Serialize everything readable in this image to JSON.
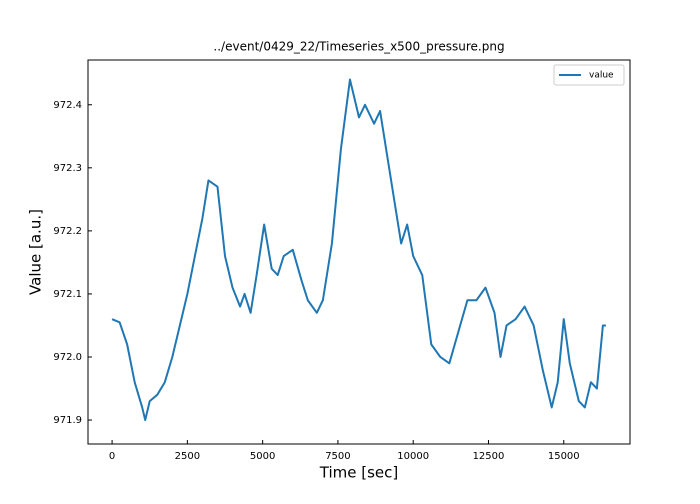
{
  "chart_data": {
    "type": "line",
    "title": "../event/0429_22/Timeseries_x500_pressure.png",
    "xlabel": "Time [sec]",
    "ylabel": "Value [a.u.]",
    "x": [
      0,
      250,
      500,
      750,
      1000,
      1100,
      1250,
      1500,
      1750,
      2000,
      2250,
      2500,
      2750,
      3000,
      3200,
      3500,
      3750,
      4000,
      4250,
      4400,
      4600,
      4800,
      5050,
      5300,
      5500,
      5700,
      6000,
      6300,
      6500,
      6800,
      7000,
      7300,
      7600,
      7900,
      8200,
      8400,
      8700,
      8900,
      9100,
      9300,
      9600,
      9800,
      10000,
      10300,
      10600,
      10900,
      11200,
      11500,
      11800,
      12100,
      12400,
      12700,
      12900,
      13100,
      13400,
      13700,
      14000,
      14300,
      14600,
      14800,
      15000,
      15200,
      15500,
      15700,
      15900,
      16100,
      16300,
      16400
    ],
    "series": [
      {
        "name": "value",
        "color": "#1f77b4",
        "values": [
          972.06,
          972.055,
          972.02,
          971.96,
          971.92,
          971.9,
          971.93,
          971.94,
          971.96,
          972.0,
          972.05,
          972.1,
          972.16,
          972.22,
          972.28,
          972.27,
          972.16,
          972.11,
          972.08,
          972.1,
          972.07,
          972.13,
          972.21,
          972.14,
          972.13,
          972.16,
          972.17,
          972.12,
          972.09,
          972.07,
          972.09,
          972.18,
          972.33,
          972.44,
          972.38,
          972.4,
          972.37,
          972.39,
          972.33,
          972.27,
          972.18,
          972.21,
          972.16,
          972.13,
          972.02,
          972.0,
          971.99,
          972.04,
          972.09,
          972.09,
          972.11,
          972.07,
          972.0,
          972.05,
          972.06,
          972.08,
          972.05,
          971.98,
          971.92,
          971.96,
          972.06,
          971.99,
          971.93,
          971.92,
          971.96,
          971.95,
          972.05,
          972.05
        ]
      }
    ],
    "xlim": [
      -800,
      17200
    ],
    "ylim": [
      971.862,
      972.471
    ],
    "xticks": [
      0,
      2500,
      5000,
      7500,
      10000,
      12500,
      15000
    ],
    "yticks": [
      971.9,
      {
        "value": 972.0,
        "label": "972.0"
      },
      972.1,
      972.2,
      972.3,
      972.4
    ],
    "legend": "upper right",
    "grid": false
  }
}
